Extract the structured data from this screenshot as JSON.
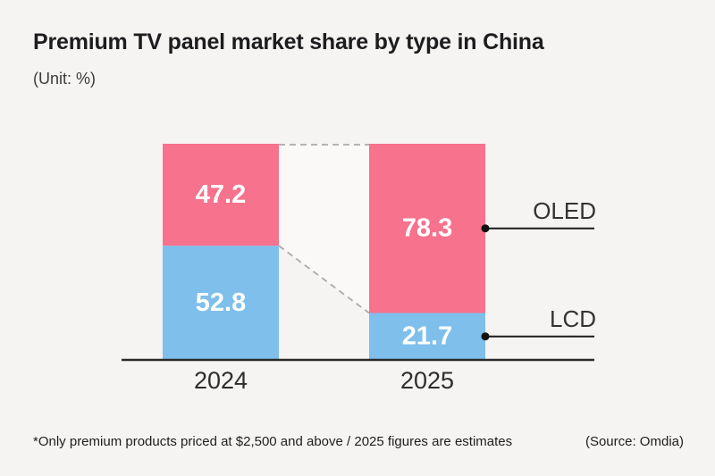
{
  "header": {
    "title": "Premium TV panel market share by type in China",
    "unit_note": "(Unit: %)"
  },
  "chart_data": {
    "type": "bar",
    "subtype": "stacked-100-percent",
    "categories": [
      "2024",
      "2025"
    ],
    "series": [
      {
        "name": "OLED",
        "color": "#f7728c",
        "values": [
          47.2,
          78.3
        ]
      },
      {
        "name": "LCD",
        "color": "#7ebfec",
        "values": [
          52.8,
          21.7
        ]
      }
    ],
    "ylim": [
      0,
      100
    ],
    "grid": false,
    "legend_position": "right-leader-lines",
    "value_labels": [
      "47.2",
      "52.8",
      "78.3",
      "21.7"
    ]
  },
  "footnote": {
    "note": "*Only premium products priced at $2,500 and above / 2025 figures are estimates",
    "source": "(Source: Omdia)"
  },
  "colors": {
    "background": "#f5f4f2",
    "band_fill": "#faf9f7",
    "dashed_line": "#ababab",
    "leader_line": "#1a1a1a",
    "leader_dot": "#111111",
    "axis_line": "#2b2b2b",
    "value_label_text": "#ffffff",
    "title_text": "#1d1d1f",
    "subtitle_text": "#3b3b3d",
    "label_text": "#333333"
  }
}
